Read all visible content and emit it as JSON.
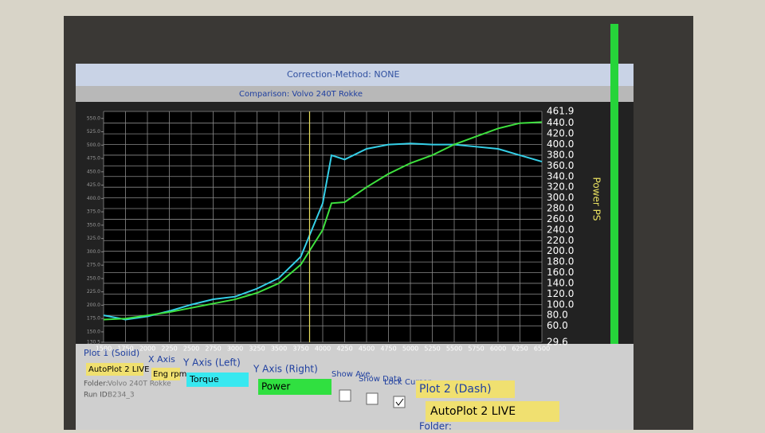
{
  "window": {
    "header": "Correction-Method: NONE",
    "comparison": "Comparison: Volvo 240T Rokke"
  },
  "chart_data": {
    "type": "line",
    "y2_label": "Power PS",
    "x": [
      1500,
      1750,
      2000,
      2250,
      2500,
      2750,
      3000,
      3250,
      3500,
      3750,
      4000,
      4100,
      4250,
      4500,
      4750,
      5000,
      5250,
      5500,
      5750,
      6000,
      6250,
      6500
    ],
    "series": [
      {
        "name": "Torque",
        "color": "#35d0e8",
        "axis": "y",
        "values": [
          181,
          173,
          179,
          189,
          201,
          211,
          216,
          231,
          251,
          291,
          391,
          481,
          473,
          493,
          501,
          503,
          501,
          501,
          497,
          493,
          481,
          469
        ]
      },
      {
        "name": "Power",
        "color": "#3ee03e",
        "axis": "y2",
        "values": [
          72,
          74,
          80,
          86,
          94,
          102,
          110,
          122,
          140,
          175,
          240,
          290,
          292,
          320,
          345,
          365,
          380,
          400,
          415,
          430,
          440,
          442
        ]
      }
    ],
    "xlim": [
      1500,
      6500
    ],
    "xticks": [
      1500,
      1750,
      2000,
      2250,
      2500,
      2750,
      3000,
      3250,
      3500,
      3750,
      4000,
      4250,
      4500,
      4750,
      5000,
      5250,
      5500,
      5750,
      6000,
      6250,
      6500
    ],
    "ylim": [
      130.5,
      563.1
    ],
    "yticks": [
      130.5,
      {
        "value": 150,
        "label": "150.0"
      },
      {
        "value": 175,
        "label": "175.0"
      },
      {
        "value": 200,
        "label": "200.0"
      },
      {
        "value": 225,
        "label": "225.0"
      },
      {
        "value": 250,
        "label": "250.0"
      },
      {
        "value": 275,
        "label": "275.0"
      },
      {
        "value": 300,
        "label": "300.0"
      },
      {
        "value": 325,
        "label": "325.0"
      },
      {
        "value": 350,
        "label": "350.0"
      },
      {
        "value": 375,
        "label": "375.0"
      },
      {
        "value": 400,
        "label": "400.0"
      },
      {
        "value": 425,
        "label": "425.0"
      },
      {
        "value": 450,
        "label": "450.0"
      },
      {
        "value": 475,
        "label": "475.0"
      },
      {
        "value": 500,
        "label": "500.0"
      },
      {
        "value": 525,
        "label": "525.0"
      },
      {
        "value": 550,
        "label": "550.0"
      }
    ],
    "y2lim": [
      29.6,
      461.9
    ],
    "y2ticks": [
      29.6,
      {
        "value": 60,
        "label": "60.0"
      },
      {
        "value": 80,
        "label": "80.0"
      },
      {
        "value": 100,
        "label": "100.0"
      },
      {
        "value": 120,
        "label": "120.0"
      },
      {
        "value": 140,
        "label": "140.0"
      },
      {
        "value": 160,
        "label": "160.0"
      },
      {
        "value": 180,
        "label": "180.0"
      },
      {
        "value": 200,
        "label": "200.0"
      },
      {
        "value": 220,
        "label": "220.0"
      },
      {
        "value": 240,
        "label": "240.0"
      },
      {
        "value": 260,
        "label": "260.0"
      },
      {
        "value": 280,
        "label": "280.0"
      },
      {
        "value": 300,
        "label": "300.0"
      },
      {
        "value": 320,
        "label": "320.0"
      },
      {
        "value": 340,
        "label": "340.0"
      },
      {
        "value": 360,
        "label": "360.0"
      },
      {
        "value": 380,
        "label": "380.0"
      },
      {
        "value": 400,
        "label": "400.0"
      },
      {
        "value": 420,
        "label": "420.0"
      },
      {
        "value": 440,
        "label": "440.0"
      },
      461.9
    ],
    "cursor_x": 3850,
    "cursor_color": "#e8e060",
    "grid": true
  },
  "panel": {
    "plot1": "Plot 1 (Solid)",
    "plot1_source": "AutoPlot 2 LIVE",
    "x_axis": "X Axis",
    "x_axis_value": "Eng rpm",
    "y_left": "Y Axis (Left)",
    "y_right": "Y Axis (Right)",
    "show_ave": "Show Ave.",
    "show_data": "Show Data",
    "lock_cursor": "Lock Cursor",
    "folder": "Folder:",
    "folder_value": "Volvo 240T Rokke",
    "run_id": "Run ID:",
    "run_id_value": "B234_3",
    "plot2": "Plot 2 (Dash)",
    "plot2_source": "AutoPlot 2 LIVE",
    "folder2": "Folder:"
  }
}
